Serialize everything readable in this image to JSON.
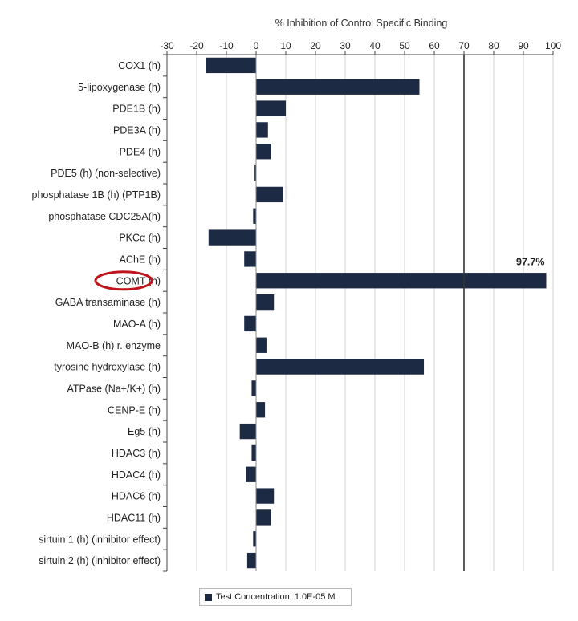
{
  "chart_data": {
    "type": "bar",
    "orientation": "horizontal",
    "title": "% Inhibition of Control Specific Binding",
    "xlabel": "% Inhibition of Control Specific Binding",
    "ylabel": "",
    "xlim": [
      -30,
      100
    ],
    "xticks": [
      "-30",
      "-20",
      "-10",
      "0",
      "10",
      "20",
      "30",
      "40",
      "50",
      "60",
      "70",
      "80",
      "90",
      "100"
    ],
    "threshold": 70,
    "grid": true,
    "legend_position": "bottom-left",
    "categories": [
      "COX1 (h)",
      "5-lipoxygenase (h)",
      "PDE1B (h)",
      "PDE3A (h)",
      "PDE4 (h)",
      "PDE5 (h) (non-selective)",
      "phosphatase 1B (h) (PTP1B)",
      "phosphatase CDC25A(h)",
      "PKCα (h)",
      "AChE (h)",
      "COMT (h)",
      "GABA transaminase (h)",
      "MAO-A (h)",
      "MAO-B (h) r. enzyme",
      "tyrosine hydroxylase (h)",
      "ATPase (Na+/K+) (h)",
      "CENP-E (h)",
      "Eg5 (h)",
      "HDAC3 (h)",
      "HDAC4 (h)",
      "HDAC6 (h)",
      "HDAC11 (h)",
      "sirtuin 1 (h) (inhibitor effect)",
      "sirtuin 2 (h) (inhibitor effect)"
    ],
    "series": [
      {
        "name": "Test Concentration: 1.0E-05 M",
        "color": "#1c2a44",
        "values": [
          -17,
          55,
          10,
          4,
          5,
          -0.5,
          9,
          -1,
          -16,
          -4,
          97.7,
          6,
          -4,
          3.5,
          56.5,
          -1.5,
          3,
          -5.5,
          -1.5,
          -3.5,
          6,
          5,
          -1,
          -3
        ]
      }
    ],
    "annotations": [
      {
        "category": "COMT (h)",
        "text": "97.7%"
      }
    ],
    "highlight": {
      "category": "COMT (h)",
      "color": "#c0141c"
    }
  }
}
